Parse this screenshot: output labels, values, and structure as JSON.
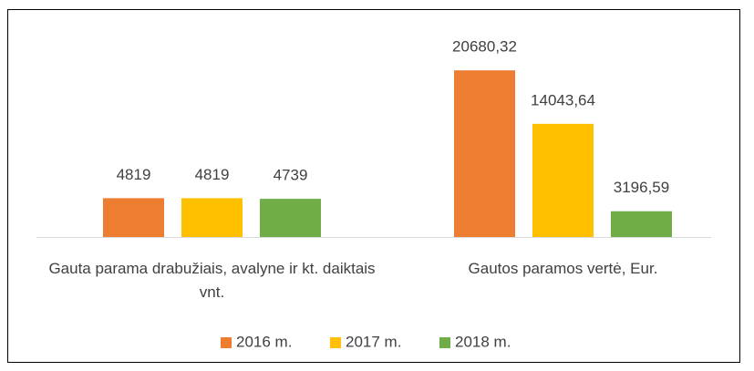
{
  "chart_data": {
    "type": "bar",
    "categories": [
      "Gauta parama drabužiais, avalyne ir kt. daiktais vnt.",
      "Gautos paramos vertė, Eur."
    ],
    "series": [
      {
        "name": "2016 m.",
        "color": "#ed7d31",
        "values": [
          4819,
          20680.32
        ],
        "value_labels": [
          "4819",
          "20680,32"
        ]
      },
      {
        "name": "2017 m.",
        "color": "#ffc000",
        "values": [
          4819,
          14043.64
        ],
        "value_labels": [
          "4819",
          "14043,64"
        ]
      },
      {
        "name": "2018 m.",
        "color": "#70ad47",
        "values": [
          4739,
          3196.59
        ],
        "value_labels": [
          "4739",
          "3196,59"
        ]
      }
    ],
    "ylim": [
      0,
      25000
    ],
    "legend": "bottom"
  }
}
